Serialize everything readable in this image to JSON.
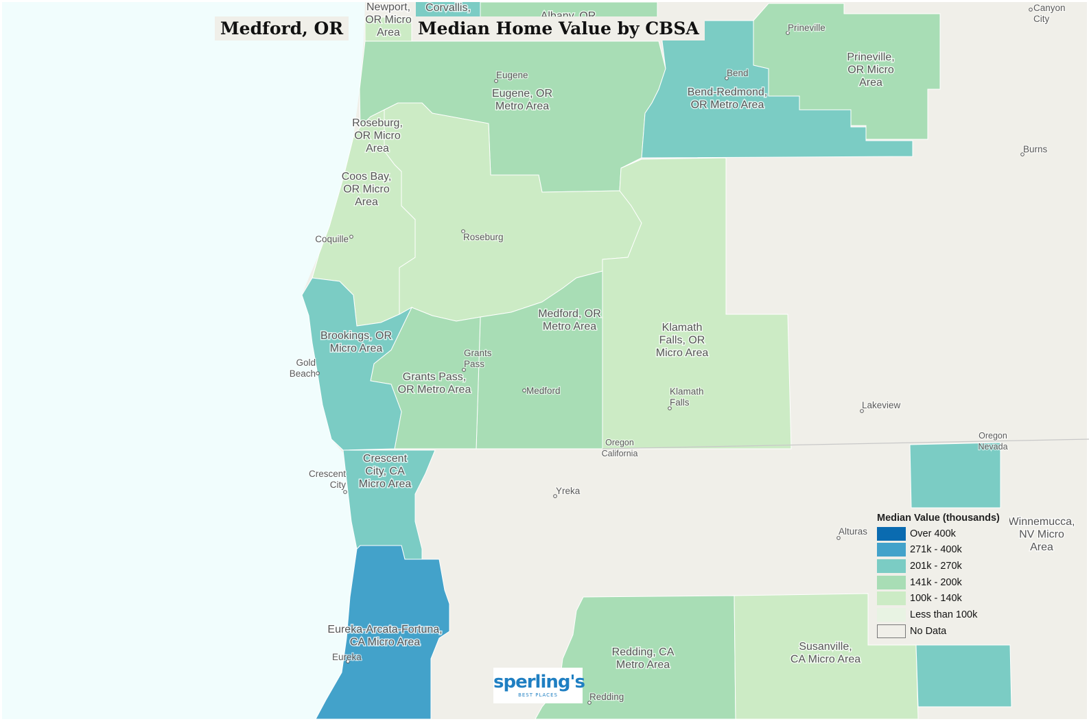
{
  "titles": {
    "city": "Medford, OR",
    "map_title": "Median Home Value by CBSA"
  },
  "colors": {
    "ocean": "#f1fdfd",
    "land_no_data": "#f0efe9",
    "over_400k": "#0a6bb0",
    "k271_400": "#43a2ca",
    "k201_270": "#7bccc4",
    "k141_200": "#a8ddb5",
    "k100_140": "#ccebc5",
    "less_100k": "#e8f3e3",
    "no_data": "#f0efe9",
    "boundary": "#ffffff",
    "state_line": "#c8c8c8"
  },
  "legend": {
    "title": "Median Value (thousands)",
    "items": [
      {
        "label": "Over 400k",
        "color": "#0a6bb0"
      },
      {
        "label": "271k - 400k",
        "color": "#43a2ca"
      },
      {
        "label": "201k - 270k",
        "color": "#7bccc4"
      },
      {
        "label": "141k - 200k",
        "color": "#a8ddb5"
      },
      {
        "label": "100k - 140k",
        "color": "#ccebc5"
      },
      {
        "label": "Less than 100k",
        "color": "#e8f3e3"
      },
      {
        "label": "No Data",
        "color": "#f0efe9"
      }
    ]
  },
  "areas": [
    {
      "id": "eugene",
      "name": [
        "Eugene, OR",
        "Metro Area"
      ],
      "value_class": "141k - 200k"
    },
    {
      "id": "bend",
      "name": [
        "Bend-Redmond,",
        "OR Metro Area"
      ],
      "value_class": "201k - 270k"
    },
    {
      "id": "prineville",
      "name": [
        "Prineville,",
        "OR Micro",
        "Area"
      ],
      "value_class": "141k - 200k"
    },
    {
      "id": "roseburg",
      "name": [
        "Roseburg,",
        "OR Micro",
        "Area"
      ],
      "value_class": "100k - 140k"
    },
    {
      "id": "coos-bay",
      "name": [
        "Coos Bay,",
        "OR Micro",
        "Area"
      ],
      "value_class": "100k - 140k"
    },
    {
      "id": "brookings",
      "name": [
        "Brookings, OR",
        "Micro Area"
      ],
      "value_class": "201k - 270k"
    },
    {
      "id": "grants-pass",
      "name": [
        "Grants Pass,",
        "OR Metro Area"
      ],
      "value_class": "141k - 200k"
    },
    {
      "id": "medford",
      "name": [
        "Medford, OR",
        "Metro Area"
      ],
      "value_class": "141k - 200k"
    },
    {
      "id": "klamath-falls",
      "name": [
        "Klamath",
        "Falls, OR",
        "Micro Area"
      ],
      "value_class": "100k - 140k"
    },
    {
      "id": "crescent-city",
      "name": [
        "Crescent",
        "City, CA",
        "Micro Area"
      ],
      "value_class": "201k - 270k"
    },
    {
      "id": "eureka",
      "name": [
        "Eureka-Arcata-Fortuna,",
        "CA Micro Area"
      ],
      "value_class": "271k - 400k"
    },
    {
      "id": "redding",
      "name": [
        "Redding, CA",
        "Metro Area"
      ],
      "value_class": "141k - 200k"
    },
    {
      "id": "susanville",
      "name": [
        "Susanville,",
        "CA Micro Area"
      ],
      "value_class": "100k - 140k"
    },
    {
      "id": "winnemucca",
      "name": [
        "Winnemucca,",
        "NV Micro",
        "Area"
      ],
      "value_class": "201k - 270k"
    },
    {
      "id": "newport",
      "name": [
        "Newport,",
        "OR Micro",
        "Area"
      ],
      "value_class": ""
    },
    {
      "id": "corvallis",
      "name": [
        "Corvallis,"
      ],
      "value_class": "201k - 270k"
    },
    {
      "id": "albany",
      "name": [
        "Albany, OR"
      ],
      "value_class": "141k - 200k"
    }
  ],
  "cities": [
    {
      "id": "eugene",
      "lines": [
        "Eugene"
      ]
    },
    {
      "id": "bend",
      "lines": [
        "Bend"
      ]
    },
    {
      "id": "prineville",
      "lines": [
        "Prineville"
      ]
    },
    {
      "id": "canyon-city",
      "lines": [
        "Canyon",
        "City"
      ]
    },
    {
      "id": "burns",
      "lines": [
        "Burns"
      ]
    },
    {
      "id": "coquille",
      "lines": [
        "Coquille"
      ]
    },
    {
      "id": "roseburg",
      "lines": [
        "Roseburg"
      ]
    },
    {
      "id": "gold-beach",
      "lines": [
        "Gold",
        "Beach"
      ]
    },
    {
      "id": "grants-pass",
      "lines": [
        "Grants",
        "Pass"
      ]
    },
    {
      "id": "medford",
      "lines": [
        "Medford"
      ]
    },
    {
      "id": "klamath-falls",
      "lines": [
        "Klamath",
        "Falls"
      ]
    },
    {
      "id": "lakeview",
      "lines": [
        "Lakeview"
      ]
    },
    {
      "id": "crescent-city",
      "lines": [
        "Crescent",
        "City"
      ]
    },
    {
      "id": "yreka",
      "lines": [
        "Yreka"
      ]
    },
    {
      "id": "alturas",
      "lines": [
        "Alturas"
      ]
    },
    {
      "id": "eureka",
      "lines": [
        "Eureka"
      ]
    },
    {
      "id": "redding",
      "lines": [
        "Redding"
      ]
    }
  ],
  "state_labels": [
    {
      "id": "oregon-california",
      "lines": [
        "Oregon",
        "California"
      ]
    },
    {
      "id": "oregon-nevada",
      "lines": [
        "Oregon",
        "Nevada"
      ]
    }
  ],
  "logo": {
    "name": "sperling's",
    "tagline": "BEST PLACES"
  }
}
